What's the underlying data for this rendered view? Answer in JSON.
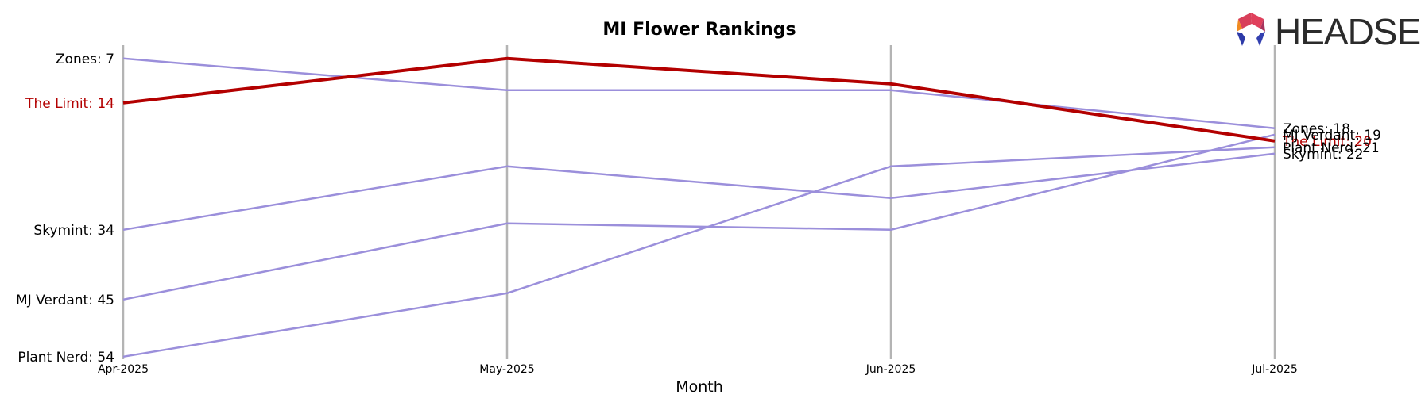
{
  "logo": {
    "text": "HEADSET"
  },
  "chart_data": {
    "type": "line",
    "title": "MI Flower Rankings",
    "xlabel": "Month",
    "ylabel": "",
    "categories": [
      "Apr-2025",
      "May-2025",
      "Jun-2025",
      "Jul-2025"
    ],
    "y_inverted": true,
    "grid": "vertical lines at each month",
    "series": [
      {
        "name": "Zones",
        "values": [
          7,
          12,
          12,
          18
        ],
        "color": "#9b8fdb",
        "highlight": false,
        "start_label": "Zones: 7",
        "end_label": "Zones: 18"
      },
      {
        "name": "The Limit",
        "values": [
          14,
          7,
          11,
          20
        ],
        "color": "#b30000",
        "highlight": true,
        "start_label": "The Limit: 14",
        "end_label": "The Limit: 20"
      },
      {
        "name": "Skymint",
        "values": [
          34,
          24,
          29,
          22
        ],
        "color": "#9b8fdb",
        "highlight": false,
        "start_label": "Skymint: 34",
        "end_label": "Skymint: 22"
      },
      {
        "name": "MJ Verdant",
        "values": [
          45,
          33,
          34,
          19
        ],
        "color": "#9b8fdb",
        "highlight": false,
        "start_label": "MJ Verdant: 45",
        "end_label": "MJ Verdant: 19"
      },
      {
        "name": "Plant Nerd",
        "values": [
          54,
          44,
          24,
          21
        ],
        "color": "#9b8fdb",
        "highlight": false,
        "start_label": "Plant Nerd: 54",
        "end_label": "Plant Nerd: 21"
      }
    ]
  }
}
